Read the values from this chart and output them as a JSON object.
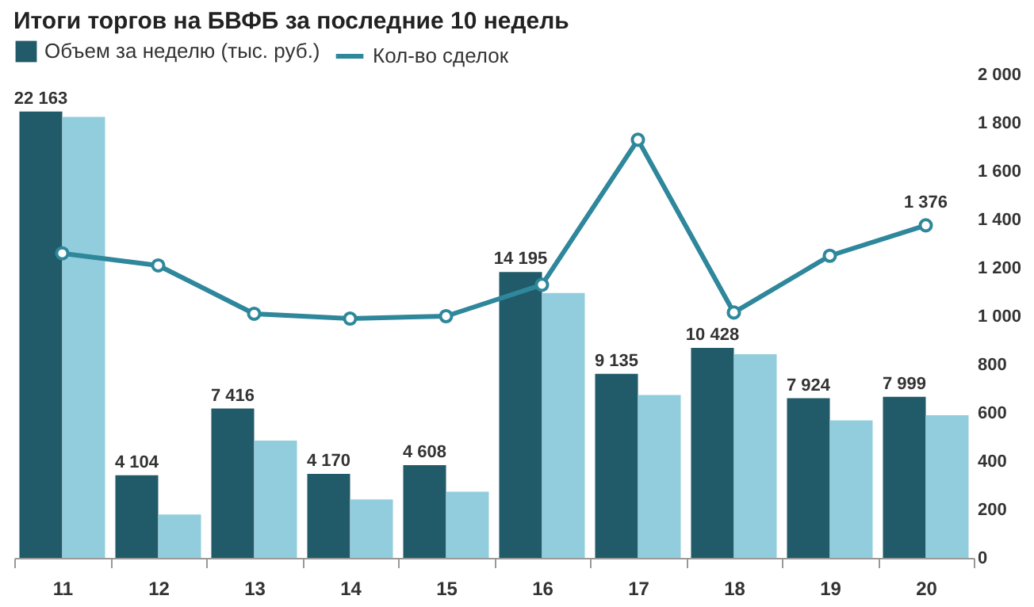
{
  "chart_data": {
    "type": "bar",
    "title": "Итоги торгов на БВФБ за последние 10 недель",
    "categories": [
      "11",
      "12",
      "13",
      "14",
      "15",
      "16",
      "17",
      "18",
      "19",
      "20"
    ],
    "series": [
      {
        "name": "Объем за неделю (тыс. руб.)",
        "color": "#215a69",
        "axis": "y2",
        "values": [
          22163,
          4104,
          7416,
          4170,
          4608,
          14195,
          9135,
          10428,
          7924,
          7999
        ],
        "value_labels": [
          "22 163",
          "4 104",
          "7 416",
          "4 170",
          "4 608",
          "14 195",
          "9 135",
          "10 428",
          "7 924",
          "7 999"
        ]
      },
      {
        "color": "#92cddd",
        "axis": "y2",
        "values": [
          21900,
          2150,
          5820,
          2900,
          3290,
          13150,
          8090,
          10110,
          6830,
          7080
        ]
      },
      {
        "name": "Кол-во сделок",
        "type": "line",
        "color": "#2e879b",
        "marker": "circle",
        "values": [
          1260,
          1210,
          1010,
          990,
          1000,
          1130,
          1730,
          1015,
          1250,
          1376
        ],
        "value_labels": [
          null,
          null,
          null,
          null,
          null,
          null,
          null,
          null,
          null,
          "1 376"
        ]
      }
    ],
    "ylim": [
      0,
      2000
    ],
    "yticks": [
      0,
      {
        "value": 200,
        "label": "200"
      },
      400,
      600,
      800,
      {
        "value": 1000,
        "label": "1 000"
      },
      {
        "value": 1200,
        "label": "1 200"
      },
      {
        "value": 1400,
        "label": "1 400"
      },
      {
        "value": 1600,
        "label": "1 600"
      },
      {
        "value": 1800,
        "label": "1 800"
      },
      {
        "value": 2000,
        "label": "2 000"
      }
    ],
    "legend": "top left"
  }
}
